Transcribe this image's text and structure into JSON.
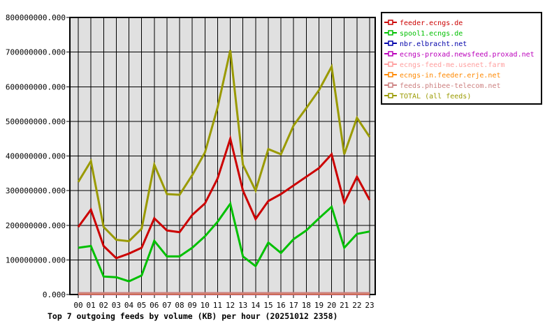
{
  "chart_data": {
    "type": "line",
    "title": "Top 7 outgoing feeds by volume (KB) per hour (20251012 2358)",
    "x_categories": [
      "00",
      "01",
      "02",
      "03",
      "04",
      "05",
      "06",
      "07",
      "08",
      "09",
      "10",
      "11",
      "12",
      "13",
      "14",
      "15",
      "16",
      "17",
      "18",
      "19",
      "20",
      "21",
      "22",
      "23"
    ],
    "y_tick_labels": [
      "0.000",
      "100000000.000",
      "200000000.000",
      "300000000.000",
      "400000000.000",
      "500000000.000",
      "600000000.000",
      "700000000.000",
      "800000000.000"
    ],
    "ylim": [
      0,
      800000000
    ],
    "grid": true,
    "plot_bg_color": "#e0e0e0",
    "grid_color": "#000000",
    "legend_position": "top-right-outside",
    "series": [
      {
        "name": "feeder.ecngs.de",
        "color": "#cc0000",
        "values": [
          195000000,
          245000000,
          140000000,
          105000000,
          118000000,
          135000000,
          220000000,
          185000000,
          180000000,
          230000000,
          263000000,
          335000000,
          450000000,
          300000000,
          218000000,
          270000000,
          290000000,
          315000000,
          340000000,
          365000000,
          405000000,
          265000000,
          340000000,
          273000000
        ]
      },
      {
        "name": "spool1.ecngs.de",
        "color": "#00c000",
        "values": [
          135000000,
          140000000,
          52000000,
          50000000,
          38000000,
          55000000,
          155000000,
          110000000,
          110000000,
          135000000,
          168000000,
          210000000,
          262000000,
          110000000,
          82000000,
          150000000,
          120000000,
          160000000,
          185000000,
          220000000,
          253000000,
          135000000,
          175000000,
          182000000
        ]
      },
      {
        "name": "nbr.elbracht.net",
        "color": "#0000aa",
        "values": 1200000
      },
      {
        "name": "ecngs-proxad.newsfeed.proxad.net",
        "color": "#bb00bb",
        "values": 1500000
      },
      {
        "name": "ecngs-feed-me.usenet.farm",
        "color": "#ff9f9f",
        "values": 2000000
      },
      {
        "name": "ecngs-in.feeder.erje.net",
        "color": "#ff8800",
        "values": 2500000
      },
      {
        "name": "feeds.phibee-telecom.net",
        "color": "#cc8080",
        "values": 4000000
      },
      {
        "name": "TOTAL (all feeds)",
        "color": "#9a9a00",
        "values": [
          325000000,
          385000000,
          195000000,
          158000000,
          154000000,
          190000000,
          375000000,
          290000000,
          288000000,
          345000000,
          410000000,
          540000000,
          705000000,
          375000000,
          300000000,
          420000000,
          405000000,
          488000000,
          538000000,
          590000000,
          658000000,
          405000000,
          510000000,
          455000000
        ]
      }
    ]
  }
}
